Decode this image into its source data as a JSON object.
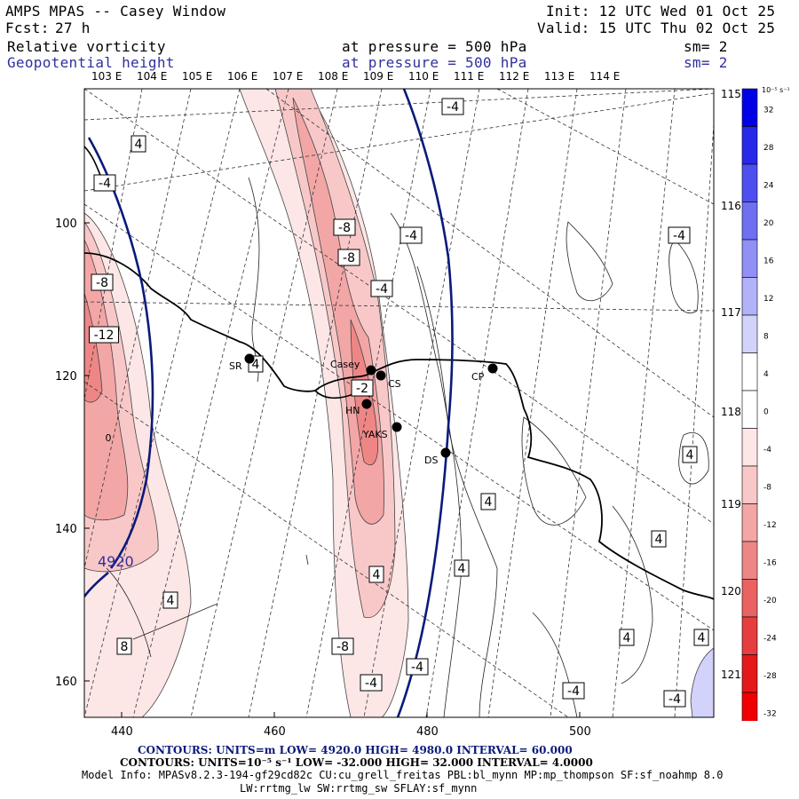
{
  "header": {
    "model": "AMPS MPAS -- Casey Window",
    "fcst_label": "Fcst:",
    "fcst_value": "27 h",
    "init": "Init: 12 UTC Wed 01 Oct 25",
    "valid": "Valid: 15 UTC Thu 02 Oct 25",
    "field1": "Relative vorticity",
    "field1_level": "at pressure =  500 hPa",
    "field1_sm": "sm= 2",
    "field2": "Geopotential height",
    "field2_level": "at pressure =  500 hPa",
    "field2_sm": "sm= 2"
  },
  "map": {
    "lon_labels_top": [
      "103 E",
      "104 E",
      "105 E",
      "106 E",
      "107 E",
      "108 E",
      "109 E",
      "110 E",
      "111 E",
      "112 E",
      "113 E",
      "114 E"
    ],
    "lon_labels_right": [
      "115 E",
      "116 E",
      "117 E",
      "118 E",
      "119 E",
      "120 E",
      "121 E"
    ],
    "y_ticks": [
      "100",
      "120",
      "140",
      "160"
    ],
    "x_ticks": [
      "440",
      "460",
      "480",
      "500"
    ],
    "stations": [
      "SR",
      "Casey",
      "CS",
      "HN",
      "YAKS",
      "DS",
      "CP"
    ],
    "height_contour_label": "4920",
    "vorticity_labels": [
      "4",
      "-4",
      "-8",
      "-12",
      "4",
      "-8",
      "-8",
      "-4",
      "-4",
      "-4",
      "-2",
      "-4",
      "4",
      "4",
      "4",
      "4",
      "4",
      "-4",
      "-4",
      "-4",
      "-8",
      "-4",
      "4",
      "4",
      "8",
      "4",
      "0",
      "4",
      "4"
    ]
  },
  "colorbar": {
    "unit": "10⁻⁵ s⁻¹",
    "labels": [
      "32",
      "28",
      "24",
      "20",
      "16",
      "12",
      "8",
      "4",
      "0",
      "-4",
      "-8",
      "-12",
      "-16",
      "-20",
      "-24",
      "-28",
      "-32"
    ],
    "colors": [
      "#0000e6",
      "#2828ea",
      "#4f4fef",
      "#6f6ff2",
      "#9090f5",
      "#b2b2f8",
      "#d2d2fb",
      "#ffffff",
      "#ffffff",
      "#fde6e6",
      "#f8c8c8",
      "#f3a6a6",
      "#ee8686",
      "#ea6262",
      "#e63e3e",
      "#e41a1a",
      "#f00000"
    ]
  },
  "footer": {
    "line1": "CONTOURS:  UNITS=m  LOW=  4920.0          HIGH=  4980.0          INTERVAL=   60.000",
    "line2": "CONTOURS:  UNITS=10⁻⁵ s⁻¹  LOW= -32.000          HIGH=  32.000          INTERVAL=   4.0000",
    "line3": "Model Info: MPASv8.2.3-194-gf29cd82c CU:cu_grell_freitas PBL:bl_mynn MP:mp_thompson SF:sf_noahmp 8.0",
    "line4": "LW:rrtmg_lw SW:rrtmg_sw SFLAY:sf_mynn"
  }
}
